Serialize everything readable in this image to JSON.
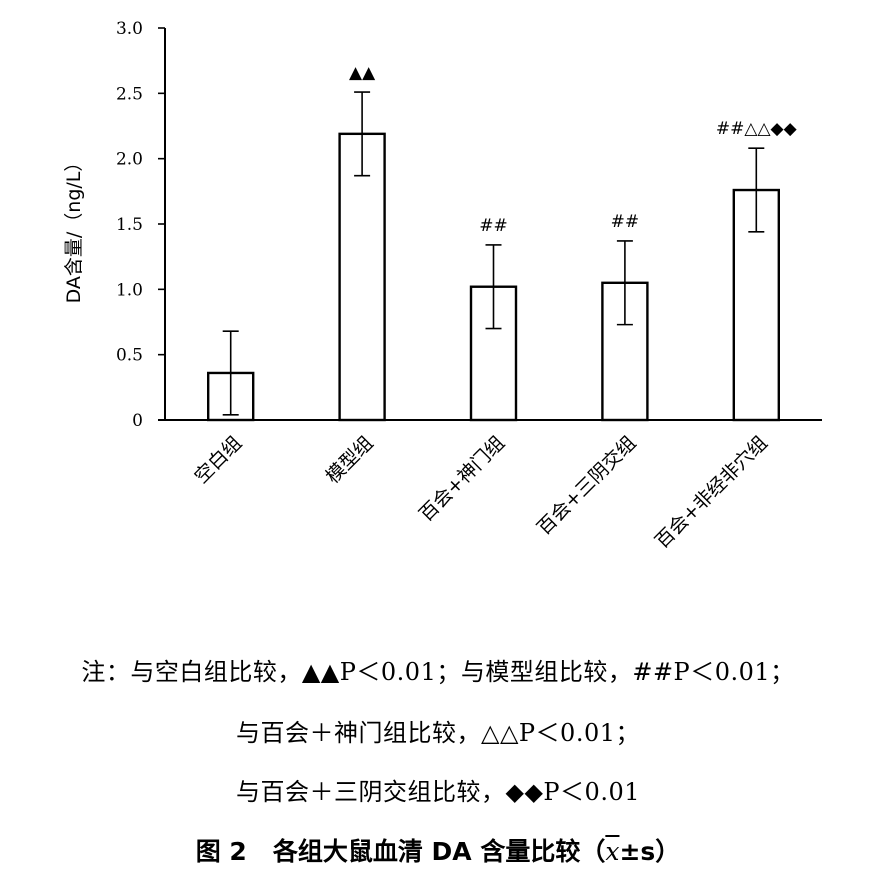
{
  "chart_data": {
    "type": "bar",
    "categories": [
      "空白组",
      "模型组",
      "百会+神门组",
      "百会+三阴交组",
      "百会+非经非穴组"
    ],
    "values": [
      0.36,
      2.19,
      1.02,
      1.05,
      1.76
    ],
    "error": [
      0.32,
      0.32,
      0.32,
      0.32,
      0.32
    ],
    "significance": [
      "",
      "▲▲",
      "##",
      "##",
      "##△△◆◆"
    ],
    "ylabel": "DA含量/（ng/L）",
    "ylim": [
      0,
      3.0
    ],
    "yticks": [
      "0",
      "0.5",
      "1.0",
      "1.5",
      "2.0",
      "2.5",
      "3.0"
    ],
    "ytick_values": [
      0,
      0.5,
      1.0,
      1.5,
      2.0,
      2.5,
      3.0
    ],
    "bar_fill": "#ffffff",
    "stroke": "#000000",
    "grid": false
  },
  "notes": {
    "line1": "注：与空白组比较，▲▲P＜0.01；与模型组比较，##P＜0.01；",
    "line2": "与百会＋神门组比较，△△P＜0.01；",
    "line3": "与百会＋三阴交组比较，◆◆P＜0.01"
  },
  "caption": {
    "figure_no": "图 2",
    "title": "各组大鼠血清 DA 含量比较（",
    "stat_x": "x",
    "stat_rest": "±s）"
  }
}
